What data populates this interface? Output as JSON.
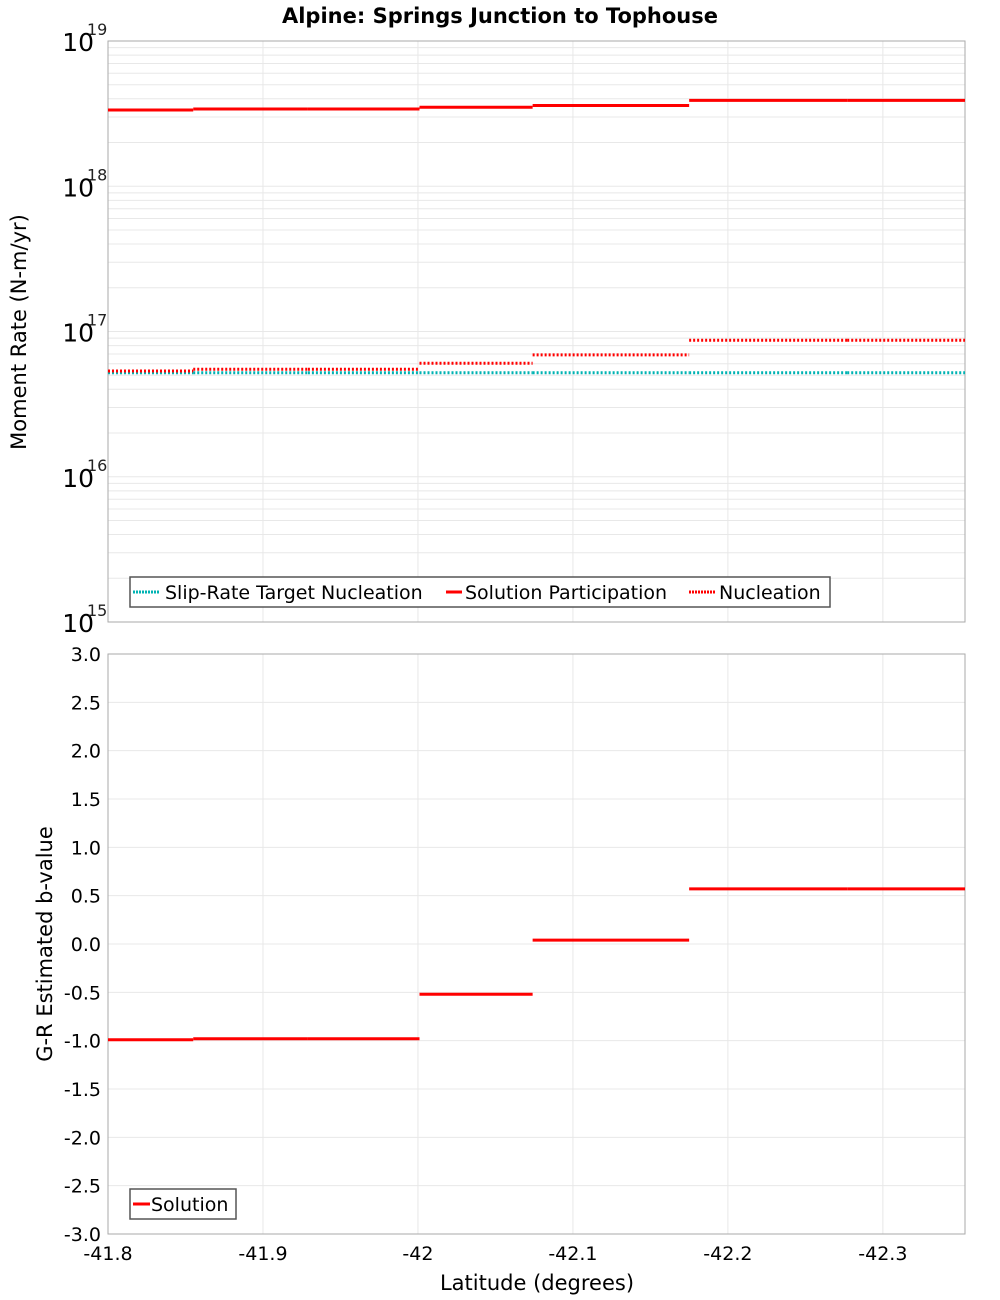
{
  "chart_data": [
    {
      "type": "line",
      "title": "Alpine: Springs Junction to Tophouse",
      "xlabel": "Latitude (degrees)",
      "ylabel": "Moment Rate (N-m/yr)",
      "yscale": "log",
      "xlim": [
        -41.8,
        -42.353
      ],
      "ylim": [
        1000000000000000.0,
        1e+19
      ],
      "y_tick_exponents": [
        "15",
        "16",
        "17",
        "18",
        "19"
      ],
      "y_tick_base": "10",
      "grid": true,
      "legend_position": "bottom-left",
      "segment_edges": [
        -41.8,
        -41.855,
        -41.929,
        -42.001,
        -42.074,
        -42.175,
        -42.277,
        -42.353
      ],
      "series": [
        {
          "name": "Slip-Rate Target Nucleation",
          "color": "#00b3b3",
          "style": "dotted",
          "values": [
            5.2e+16,
            5.2e+16,
            5.2e+16,
            5.2e+16,
            5.2e+16,
            5.2e+16,
            5.2e+16
          ]
        },
        {
          "name": "Solution Participation",
          "color": "#ff0000",
          "style": "solid",
          "values": [
            3.35e+18,
            3.4e+18,
            3.4e+18,
            3.5e+18,
            3.6e+18,
            3.9e+18,
            3.9e+18
          ]
        },
        {
          "name": "Nucleation",
          "color": "#ff0000",
          "style": "dotted",
          "values": [
            5.35e+16,
            5.5e+16,
            5.5e+16,
            6.05e+16,
            6.9e+16,
            8.7e+16,
            8.7e+16
          ]
        }
      ]
    },
    {
      "type": "line",
      "xlabel": "Latitude (degrees)",
      "ylabel": "G-R Estimated b-value",
      "xlim": [
        -41.8,
        -42.353
      ],
      "ylim": [
        -3.0,
        3.0
      ],
      "x_ticks": [
        -41.8,
        -41.9,
        -42,
        -42.1,
        -42.2,
        -42.3
      ],
      "x_tick_labels": [
        "-41.8",
        "-41.9",
        "-42",
        "-42.1",
        "-42.2",
        "-42.3"
      ],
      "y_ticks": [
        3.0,
        2.5,
        2.0,
        1.5,
        1.0,
        0.5,
        0.0,
        -0.5,
        -1.0,
        -1.5,
        -2.0,
        -2.5,
        -3.0
      ],
      "y_tick_labels": [
        "3.0",
        "2.5",
        "2.0",
        "1.5",
        "1.0",
        "0.5",
        "0.0",
        "-0.5",
        "-1.0",
        "-1.5",
        "-2.0",
        "-2.5",
        "-3.0"
      ],
      "grid": true,
      "legend_position": "bottom-left",
      "segment_edges": [
        -41.8,
        -41.855,
        -41.929,
        -42.001,
        -42.074,
        -42.175,
        -42.277,
        -42.353
      ],
      "series": [
        {
          "name": "Solution",
          "color": "#ff0000",
          "style": "solid",
          "values": [
            -0.99,
            -0.98,
            -0.98,
            -0.52,
            0.04,
            0.57,
            0.57
          ]
        }
      ]
    }
  ]
}
